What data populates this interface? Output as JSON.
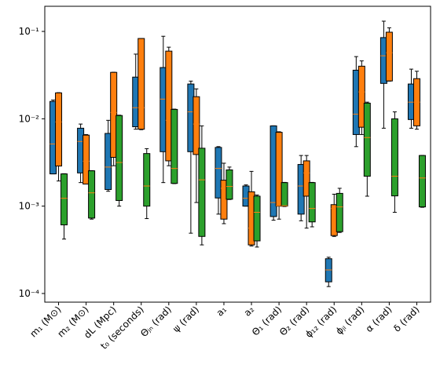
{
  "chart_data": {
    "type": "box",
    "log_y": true,
    "categories": [
      "m₁ (M⊙)",
      "m₂ (M⊙)",
      "dL (Mpc)",
      "t₀ (seconds)",
      "Θⱼₙ (rad)",
      "ψ (rad)",
      "a₁",
      "a₂",
      "Θ₁ (rad)",
      "Θ₂ (rad)",
      "ϕ₁₂ (rad)",
      "ϕⱼₗ (rad)",
      "α (rad)",
      "δ (rad)"
    ],
    "ylim": [
      7.96e-05,
      0.194
    ],
    "yticks": [
      {
        "value": 0.0001,
        "label": "10⁻⁴"
      },
      {
        "value": 0.001,
        "label": "10⁻³"
      },
      {
        "value": 0.01,
        "label": "10⁻²"
      },
      {
        "value": 0.1,
        "label": "10⁻¹"
      }
    ],
    "median_color": "#ff7f0e",
    "series": [
      {
        "color": "#1f77b4",
        "values": [
          [
            0.00234,
            0.00234,
            0.00515,
            0.0158,
            0.0164
          ],
          [
            0.00186,
            0.0024,
            0.0055,
            0.0078,
            0.0087
          ],
          [
            0.00148,
            0.00155,
            0.0028,
            0.0068,
            0.0096
          ],
          [
            0.0076,
            0.0081,
            0.0134,
            0.03,
            0.055
          ],
          [
            0.00186,
            0.0042,
            0.0168,
            0.0386,
            0.088
          ],
          [
            0.00049,
            0.0042,
            0.012,
            0.025,
            0.027
          ],
          [
            0.00081,
            0.00124,
            0.0027,
            0.0047,
            0.0048
          ],
          [
            0.001,
            0.001,
            0.00123,
            0.0017,
            0.00175
          ],
          [
            0.00069,
            0.00076,
            0.0011,
            0.0083,
            0.0083
          ],
          [
            0.00068,
            0.00081,
            0.0017,
            0.003,
            0.0038
          ],
          [
            0.00012,
            0.000136,
            0.000186,
            0.00025,
            0.00026
          ],
          [
            0.0048,
            0.0066,
            0.0113,
            0.036,
            0.0515
          ],
          [
            0.0078,
            0.0254,
            0.0526,
            0.085,
            0.131
          ],
          [
            0.0078,
            0.0098,
            0.0155,
            0.025,
            0.037
          ]
        ]
      },
      {
        "color": "#ff7f0e",
        "values": [
          [
            0.00194,
            0.00288,
            0.0092,
            0.0198,
            0.0199
          ],
          [
            0.00179,
            0.00179,
            0.00327,
            0.0065,
            0.0066
          ],
          [
            0.0029,
            0.00362,
            0.0118,
            0.034,
            0.0341
          ],
          [
            0.0075,
            0.0076,
            0.0134,
            0.083,
            0.0831
          ],
          [
            0.0029,
            0.0033,
            0.0096,
            0.0595,
            0.066
          ],
          [
            0.0011,
            0.0039,
            0.0087,
            0.0179,
            0.022
          ],
          [
            0.00063,
            0.00071,
            0.0016,
            0.00198,
            0.0031
          ],
          [
            0.00035,
            0.00036,
            0.00056,
            0.00146,
            0.0025
          ],
          [
            0.00071,
            0.001,
            0.00101,
            0.007,
            0.0071
          ],
          [
            0.00056,
            0.0013,
            0.0024,
            0.0033,
            0.0038
          ],
          [
            0.00045,
            0.00046,
            0.00094,
            0.00104,
            0.00137
          ],
          [
            0.0066,
            0.008,
            0.0203,
            0.04,
            0.046
          ],
          [
            0.027,
            0.0271,
            0.057,
            0.098,
            0.11
          ],
          [
            0.0076,
            0.0083,
            0.0155,
            0.0288,
            0.035
          ]
        ]
      },
      {
        "color": "#2ca02c",
        "values": [
          [
            0.00042,
            0.00061,
            0.00123,
            0.00234,
            0.00235
          ],
          [
            0.00071,
            0.00073,
            0.00142,
            0.00254,
            0.00255
          ],
          [
            0.001,
            0.00116,
            0.00316,
            0.0109,
            0.011
          ],
          [
            0.00072,
            0.001,
            0.0017,
            0.004,
            0.00455
          ],
          [
            0.00181,
            0.00182,
            0.0027,
            0.0128,
            0.0129
          ],
          [
            0.00036,
            0.00045,
            0.002,
            0.0046,
            0.0083
          ],
          [
            0.00119,
            0.0012,
            0.00168,
            0.0026,
            0.0028
          ],
          [
            0.00034,
            0.0004,
            0.00085,
            0.0013,
            0.00134
          ],
          [
            0.00099,
            0.001,
            0.00101,
            0.00186,
            0.00187
          ],
          [
            0.00058,
            0.00066,
            0.00094,
            0.00186,
            0.00187
          ],
          [
            0.0005,
            0.00051,
            0.00098,
            0.0014,
            0.0016
          ],
          [
            0.0013,
            0.0022,
            0.0061,
            0.0151,
            0.0155
          ],
          [
            0.00085,
            0.00131,
            0.0022,
            0.01,
            0.012
          ],
          [
            0.00097,
            0.00098,
            0.0021,
            0.0038,
            0.00381
          ]
        ]
      }
    ]
  }
}
